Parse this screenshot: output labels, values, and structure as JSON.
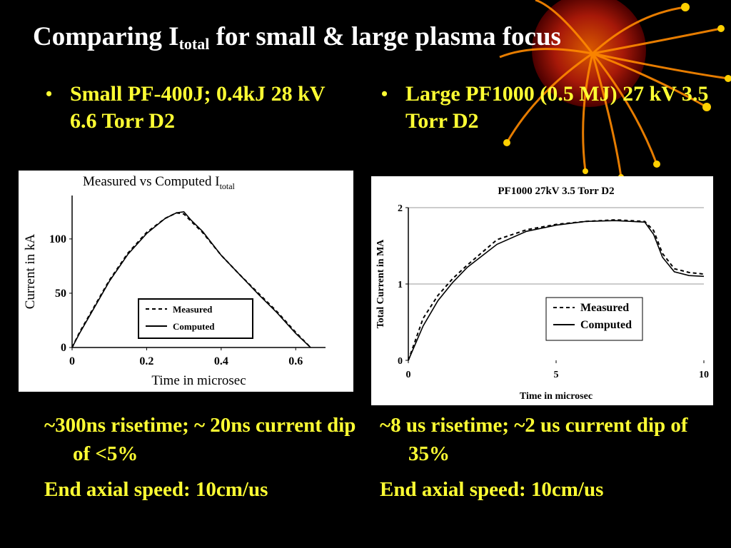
{
  "slide": {
    "title_prefix": "Comparing I",
    "title_sub": "total",
    "title_suffix": " for small & large plasma focus",
    "left_bullet": "Small PF-400J; 0.4kJ 28 kV 6.6 Torr D2",
    "right_bullet": "Large PF1000 (0.5 MJ) 27 kV 3.5 Torr D2",
    "left_notes": [
      "~300ns risetime;  ~ 20ns current dip of <5%",
      "End axial speed: 10cm/us"
    ],
    "right_notes": [
      "~8 us risetime; ~2 us current dip of 35%",
      "End axial speed: 10cm/us"
    ],
    "text_color": "#ffff33"
  },
  "chart_data": [
    {
      "type": "line",
      "title": "Measured vs Computed I",
      "title_sub": "total",
      "xlabel": "Time in microsec",
      "ylabel": "Current in kA",
      "xlim": [
        0,
        0.68
      ],
      "ylim": [
        0,
        140
      ],
      "xticks": [
        "0",
        "0.2",
        "0.4",
        "0.6"
      ],
      "yticks": [
        "0",
        "50",
        "100"
      ],
      "legend_position": "lower-right",
      "series": [
        {
          "name": "Measured",
          "style": "dashed",
          "x": [
            0,
            0.02,
            0.05,
            0.1,
            0.15,
            0.2,
            0.25,
            0.28,
            0.3,
            0.32,
            0.35,
            0.4,
            0.45,
            0.5,
            0.55,
            0.6,
            0.64
          ],
          "y": [
            0,
            14,
            32,
            62,
            87,
            106,
            119,
            124,
            123,
            116,
            106,
            85,
            67,
            50,
            33,
            14,
            0
          ]
        },
        {
          "name": "Computed",
          "style": "solid",
          "x": [
            0,
            0.02,
            0.05,
            0.1,
            0.15,
            0.2,
            0.25,
            0.28,
            0.3,
            0.32,
            0.35,
            0.4,
            0.45,
            0.5,
            0.55,
            0.6,
            0.64
          ],
          "y": [
            0,
            13,
            31,
            61,
            86,
            105,
            119,
            124,
            125,
            117,
            107,
            85,
            67,
            49,
            32,
            13,
            0
          ]
        }
      ]
    },
    {
      "type": "line",
      "title": "PF1000 27kV 3.5 Torr D2",
      "xlabel": "Time in microsec",
      "ylabel": "Total Current in MA",
      "xlim": [
        0,
        10
      ],
      "ylim": [
        0,
        2
      ],
      "xticks": [
        "0",
        "5",
        "10"
      ],
      "yticks": [
        "0",
        "1",
        "2"
      ],
      "grid": true,
      "legend_position": "lower-right",
      "series": [
        {
          "name": "Measured",
          "style": "dashed",
          "x": [
            0,
            0.5,
            1,
            1.5,
            2,
            3,
            4,
            5,
            6,
            7,
            8,
            8.3,
            8.6,
            9,
            9.5,
            10
          ],
          "y": [
            0,
            0.55,
            0.85,
            1.07,
            1.25,
            1.58,
            1.71,
            1.78,
            1.82,
            1.84,
            1.82,
            1.7,
            1.4,
            1.2,
            1.15,
            1.13
          ]
        },
        {
          "name": "Computed",
          "style": "solid",
          "x": [
            0,
            0.5,
            1,
            1.5,
            2,
            3,
            4,
            5,
            6,
            7,
            8,
            8.3,
            8.6,
            9,
            9.5,
            10
          ],
          "y": [
            0,
            0.45,
            0.78,
            1.02,
            1.22,
            1.52,
            1.69,
            1.77,
            1.82,
            1.83,
            1.81,
            1.65,
            1.35,
            1.16,
            1.11,
            1.1
          ]
        }
      ]
    }
  ]
}
